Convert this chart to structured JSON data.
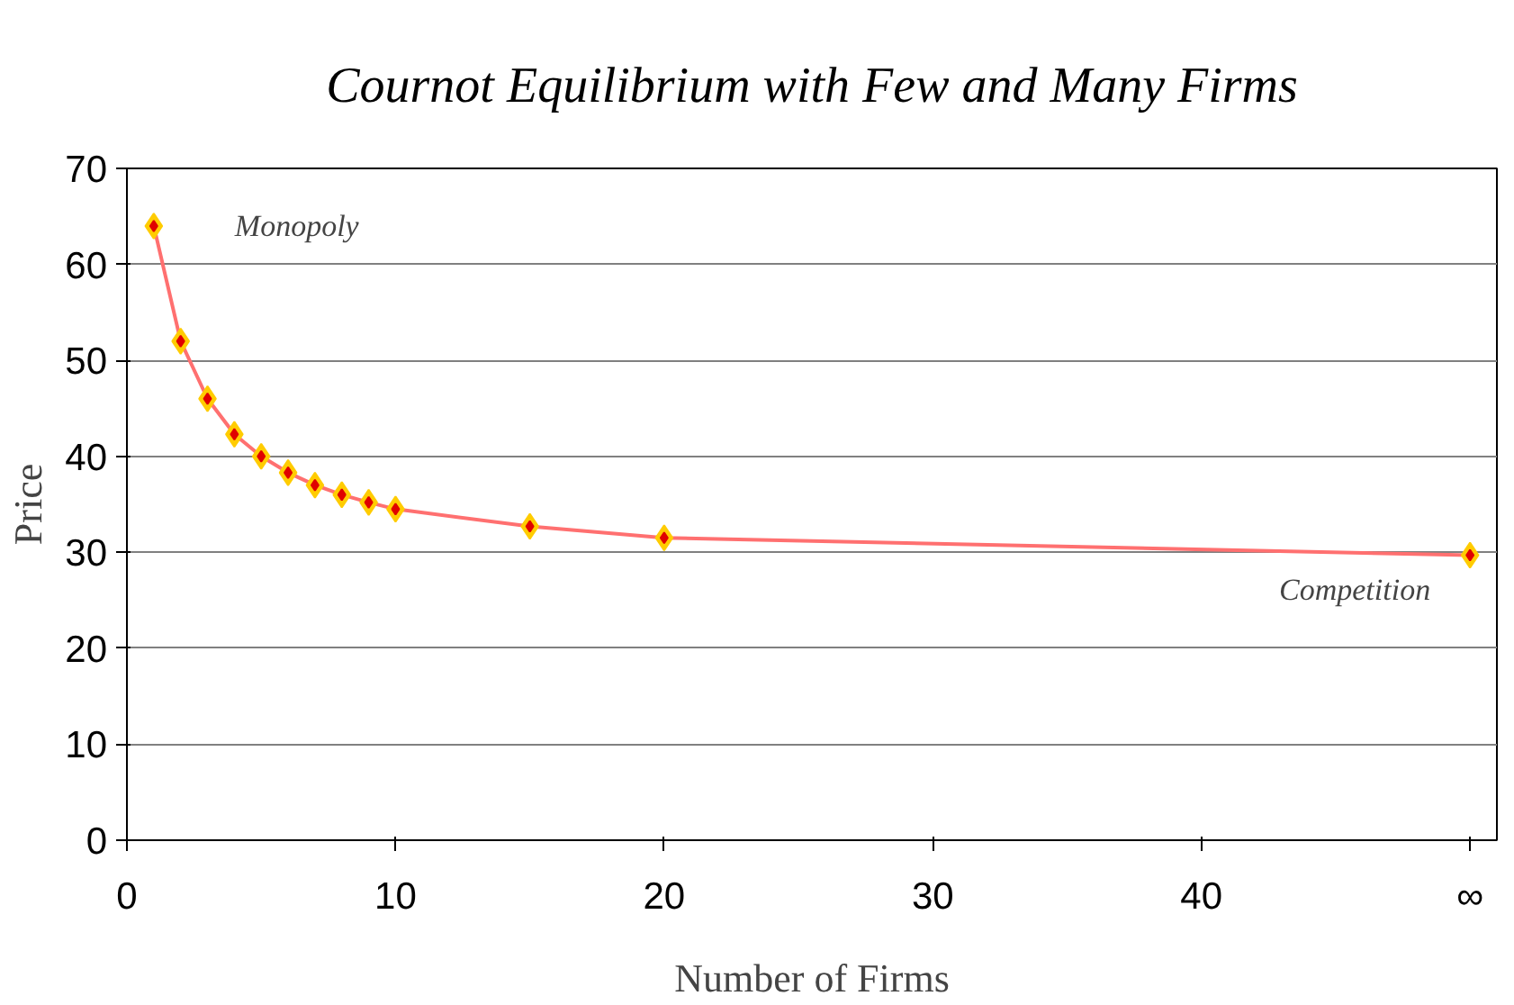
{
  "chart_data": {
    "type": "line",
    "title": "Cournot Equilibrium with Few and Many Firms",
    "xlabel": "Number of Firms",
    "ylabel": "Price",
    "x": [
      1,
      2,
      3,
      4,
      5,
      6,
      7,
      8,
      9,
      10,
      15,
      20,
      50
    ],
    "series": [
      {
        "color": "#ff7070",
        "values": [
          64,
          52,
          46,
          42.3,
          40,
          38.3,
          37,
          36,
          35.2,
          34.5,
          32.7,
          31.5,
          29.7
        ]
      }
    ],
    "xlim": [
      0,
      51
    ],
    "xticks": [
      0,
      10,
      20,
      30,
      40,
      {
        "value": 50,
        "label": "∞"
      }
    ],
    "ylim": [
      0,
      70
    ],
    "yticks": [
      0,
      10,
      20,
      30,
      40,
      50,
      60,
      70
    ],
    "grid": "y",
    "marker": "diamond",
    "line_style": "solid",
    "annotations": [
      {
        "text": "Monopoly",
        "x": 1,
        "y": 64
      },
      {
        "text": "Competition",
        "x": 50,
        "y": 29.7
      }
    ]
  }
}
